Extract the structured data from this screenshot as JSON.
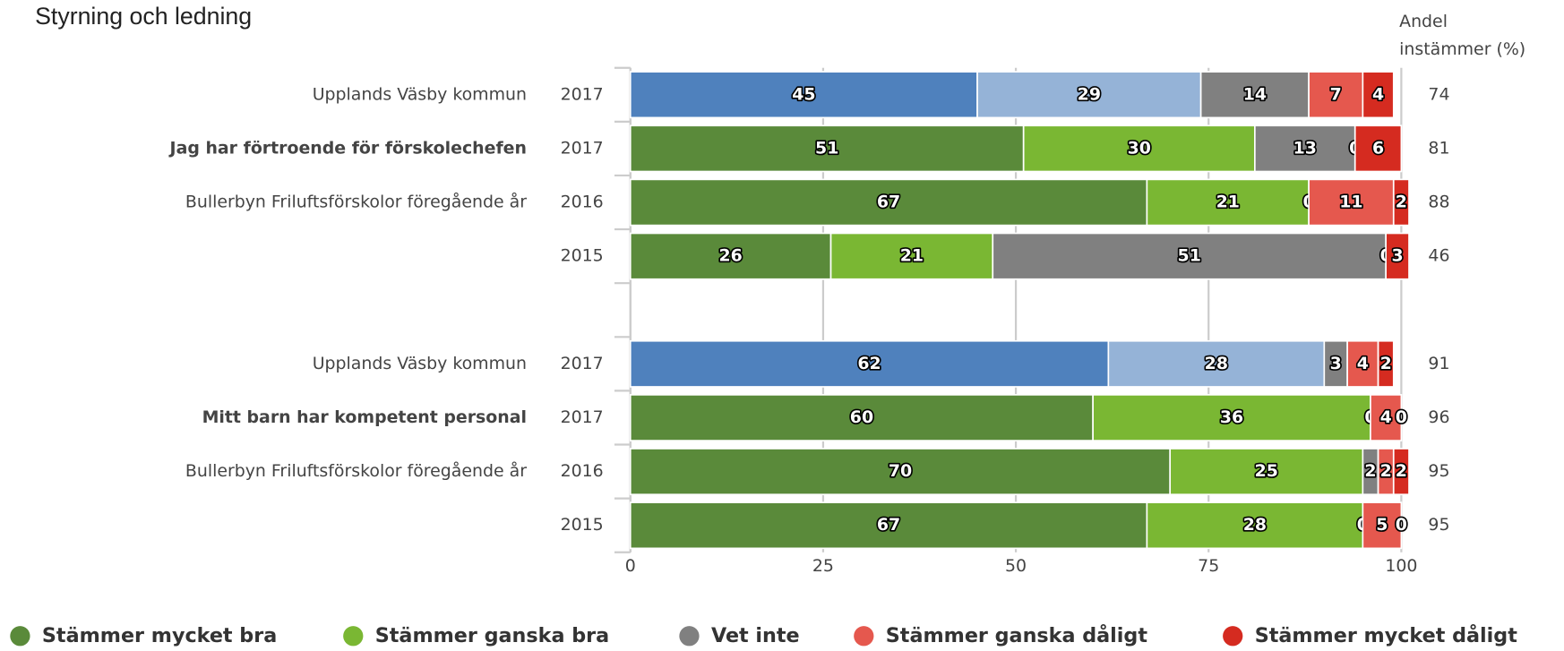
{
  "chart_data": {
    "type": "stacked-bar-horizontal",
    "title": "Styrning och ledning",
    "side_label": [
      "Andel",
      "instämmer (%)"
    ],
    "categories": [
      "Upplands Väsby kommun",
      "Jag har förtroende för förskolechefen",
      "Bullerbyn Friluftsförskolor föregående år",
      null,
      "Upplands Väsby kommun",
      "Mitt barn har kompetent personal",
      "Bullerbyn Friluftsförskolor föregående år",
      null
    ],
    "years": [
      "2017",
      "2017",
      "2016",
      "2015",
      "2017",
      "2017",
      "2016",
      "2015"
    ],
    "emphasized_rows": [
      1,
      5
    ],
    "comparison_rows": [
      0,
      4
    ],
    "comparison_colors": [
      "#4f81bd",
      "#95b3d7",
      "#808080",
      "#e5584e",
      "#d52b20"
    ],
    "series": [
      {
        "name": "Stämmer mycket bra",
        "color": "#5a8a3a",
        "values": [
          45,
          51,
          67,
          26,
          62,
          60,
          70,
          67
        ]
      },
      {
        "name": "Stämmer ganska bra",
        "color": "#7ab733",
        "values": [
          29,
          30,
          21,
          21,
          28,
          36,
          25,
          28
        ]
      },
      {
        "name": "Vet inte",
        "color": "#808080",
        "values": [
          14,
          13,
          0,
          51,
          3,
          0,
          2,
          0
        ]
      },
      {
        "name": "Stämmer ganska dåligt",
        "color": "#e5584e",
        "values": [
          7,
          0,
          11,
          0,
          4,
          4,
          2,
          5
        ]
      },
      {
        "name": "Stämmer mycket dåligt",
        "color": "#d52b20",
        "values": [
          4,
          6,
          2,
          3,
          2,
          0,
          2,
          0
        ]
      }
    ],
    "side_values": [
      74,
      81,
      88,
      46,
      91,
      96,
      95,
      95
    ],
    "xlim": [
      0,
      100
    ],
    "xticks": [
      0,
      25,
      50,
      75,
      100
    ],
    "grid": true
  }
}
